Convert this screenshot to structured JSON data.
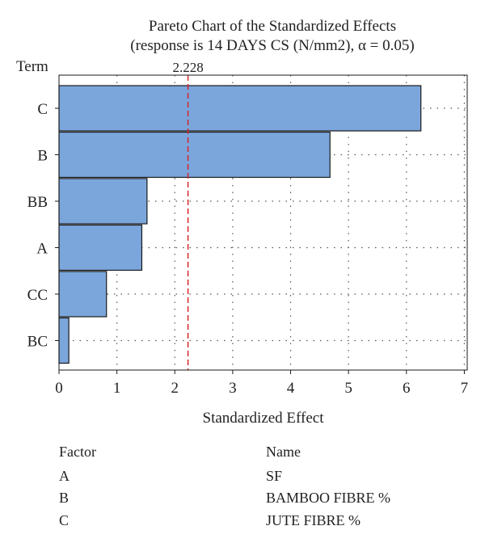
{
  "chart_data": {
    "type": "bar",
    "orientation": "horizontal",
    "title": "Pareto Chart of the Standardized Effects",
    "subtitle": "(response is 14 DAYS CS (N/mm2), α = 0.05)",
    "xlabel": "Standardized Effect",
    "ylabel": "Term",
    "categories": [
      "C",
      "B",
      "BB",
      "A",
      "CC",
      "BC"
    ],
    "values": [
      6.25,
      4.68,
      1.52,
      1.43,
      0.82,
      0.17
    ],
    "xlim": [
      0,
      7.05
    ],
    "xticks": [
      "0",
      "1",
      "2",
      "3",
      "4",
      "5",
      "6",
      "7"
    ],
    "reference_line": {
      "value": 2.228,
      "label": "2.228"
    },
    "grid": true,
    "colors": {
      "bar_fill": "#7ba6dc",
      "bar_stroke": "#1a1a1a",
      "reference_line": "#d6262b",
      "grid": "#555555"
    }
  },
  "legend_table": {
    "header": {
      "factor": "Factor",
      "name": "Name"
    },
    "rows": [
      {
        "factor": "A",
        "name": "SF"
      },
      {
        "factor": "B",
        "name": "BAMBOO FIBRE %"
      },
      {
        "factor": "C",
        "name": "JUTE FIBRE %"
      }
    ]
  }
}
